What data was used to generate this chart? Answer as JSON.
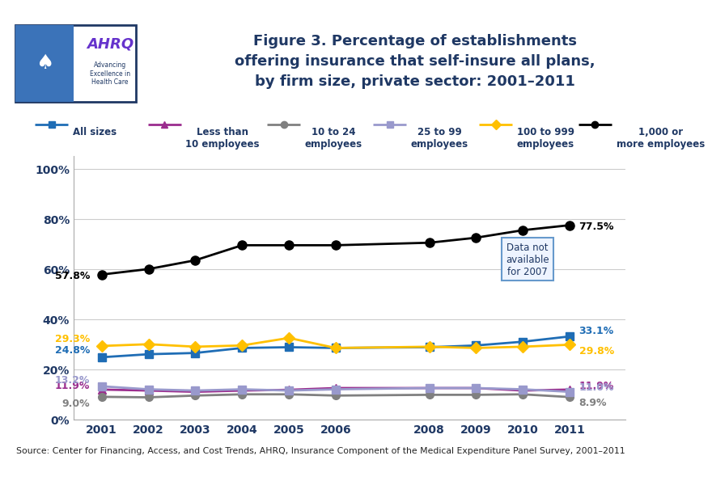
{
  "title": "Figure 3. Percentage of establishments\noffering insurance that self-insure all plans,\nby firm size, private sector: 2001–2011",
  "source": "Source: Center for Financing, Access, and Cost Trends, AHRQ, Insurance Component of the Medical Expenditure Panel Survey, 2001–2011",
  "years": [
    2001,
    2002,
    2003,
    2004,
    2005,
    2006,
    2008,
    2009,
    2010,
    2011
  ],
  "series": {
    "All sizes": {
      "color": "#1F6DB5",
      "marker": "s",
      "values": [
        24.8,
        26.0,
        26.5,
        28.5,
        28.8,
        28.5,
        28.8,
        29.5,
        31.0,
        33.1
      ]
    },
    "Less than\n10 employees": {
      "color": "#9B2D8E",
      "marker": "^",
      "values": [
        11.9,
        11.5,
        11.0,
        11.5,
        11.8,
        12.5,
        12.5,
        12.5,
        11.5,
        11.9
      ]
    },
    "10 to 24\nemployees": {
      "color": "#808080",
      "marker": "o",
      "values": [
        9.0,
        8.8,
        9.5,
        10.0,
        10.0,
        9.5,
        9.8,
        9.8,
        10.0,
        8.9
      ]
    },
    "25 to 99\nemployees": {
      "color": "#9999CC",
      "marker": "s",
      "values": [
        13.2,
        12.0,
        11.5,
        12.0,
        11.5,
        12.0,
        12.5,
        12.5,
        12.0,
        11.0
      ]
    },
    "100 to 999\nemployees": {
      "color": "#FFC000",
      "marker": "D",
      "values": [
        29.3,
        30.0,
        29.0,
        29.5,
        32.5,
        28.5,
        29.0,
        28.5,
        29.0,
        29.8
      ]
    },
    "1,000 or\nmore employees": {
      "color": "#000000",
      "marker": "o",
      "values": [
        57.8,
        60.0,
        63.5,
        69.5,
        69.5,
        69.5,
        70.5,
        72.5,
        75.5,
        77.5
      ]
    }
  },
  "ylim": [
    0,
    105
  ],
  "yticks": [
    0,
    20,
    40,
    60,
    80,
    100
  ],
  "ytick_labels": [
    "0%",
    "20%",
    "40%",
    "60%",
    "80%",
    "100%"
  ],
  "background_color": "#FFFFFF",
  "title_color": "#1F3864",
  "axis_color": "#1F3864",
  "annotation_box_text": "Data not\navailable\nfor 2007",
  "annotation_box_color": "#EEF4FF",
  "annotation_box_border": "#6699CC",
  "top_bar_color": "#1F3864",
  "source_bg_color": "#DCDCF0",
  "label_2001": {
    "All sizes": "24.8%",
    "Less than\n10 employees": "11.9%",
    "10 to 24\nemployees": "9.0%",
    "25 to 99\nemployees": "13.2%",
    "100 to 999\nemployees": "29.3%",
    "1,000 or\nmore employees": "57.8%"
  },
  "label_2011": {
    "All sizes": "33.1%",
    "Less than\n10 employees": "11.9%",
    "10 to 24\nemployees": "8.9%",
    "25 to 99\nemployees": "11.0%",
    "100 to 999\nemployees": "29.8%",
    "1,000 or\nmore employees": "77.5%"
  },
  "label_colors": {
    "All sizes": "#1F6DB5",
    "Less than\n10 employees": "#9B2D8E",
    "10 to 24\nemployees": "#808080",
    "25 to 99\nemployees": "#9999CC",
    "100 to 999\nemployees": "#FFC000",
    "1,000 or\nmore employees": "#000000"
  },
  "legend_names": [
    "All sizes",
    "Less than\n10 employees",
    "10 to 24\nemployees",
    "25 to 99\nemployees",
    "100 to 999\nemployees",
    "1,000 or\nmore employees"
  ]
}
